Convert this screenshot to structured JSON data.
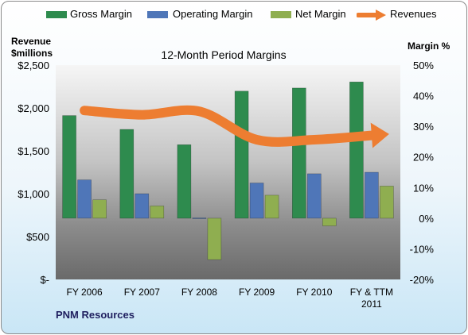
{
  "chart_data": {
    "type": "bar",
    "title": "12-Month Period Margins",
    "categories": [
      "FY 2006",
      "FY 2007",
      "FY 2008",
      "FY 2009",
      "FY 2010",
      "FY & TTM 2011"
    ],
    "left_axis": {
      "label_line1": "Revenue",
      "label_line2": "$millions",
      "ylim": [
        0,
        2500
      ],
      "ticks": [
        0,
        500,
        1000,
        1500,
        2000,
        2500
      ],
      "tick_labels": [
        "$-",
        "$500",
        "$1,000",
        "$1,500",
        "$2,000",
        "$2,500"
      ]
    },
    "right_axis": {
      "label": "Margin %",
      "ylim": [
        -20,
        50
      ],
      "ticks": [
        -20,
        -10,
        0,
        10,
        20,
        30,
        40,
        50
      ],
      "tick_labels": [
        "-20%",
        "-10%",
        "0%",
        "10%",
        "20%",
        "30%",
        "40%",
        "50%"
      ]
    },
    "series": [
      {
        "name": "Gross Margin",
        "type": "bar",
        "axis": "right",
        "color": "#2e8b4e",
        "values": [
          33.5,
          29,
          24,
          41.5,
          42.5,
          44.5
        ]
      },
      {
        "name": "Operating Margin",
        "type": "bar",
        "axis": "right",
        "color": "#4f76b8",
        "values": [
          12.5,
          8,
          0.1,
          11.5,
          14.5,
          15
        ]
      },
      {
        "name": "Net Margin",
        "type": "bar",
        "axis": "right",
        "color": "#8fae50",
        "values": [
          6,
          4,
          -13.5,
          7.5,
          -2.5,
          10.5
        ]
      },
      {
        "name": "Revenues",
        "type": "line",
        "axis": "left",
        "color": "#ed7d31",
        "values": [
          1970,
          1920,
          1960,
          1630,
          1630,
          1680
        ]
      }
    ],
    "legend_position": "top",
    "grid": false
  },
  "legend": {
    "gross": "Gross Margin",
    "operating": "Operating Margin",
    "net": "Net Margin",
    "revenues": "Revenues"
  },
  "footer": {
    "source": "PNM Resources"
  }
}
